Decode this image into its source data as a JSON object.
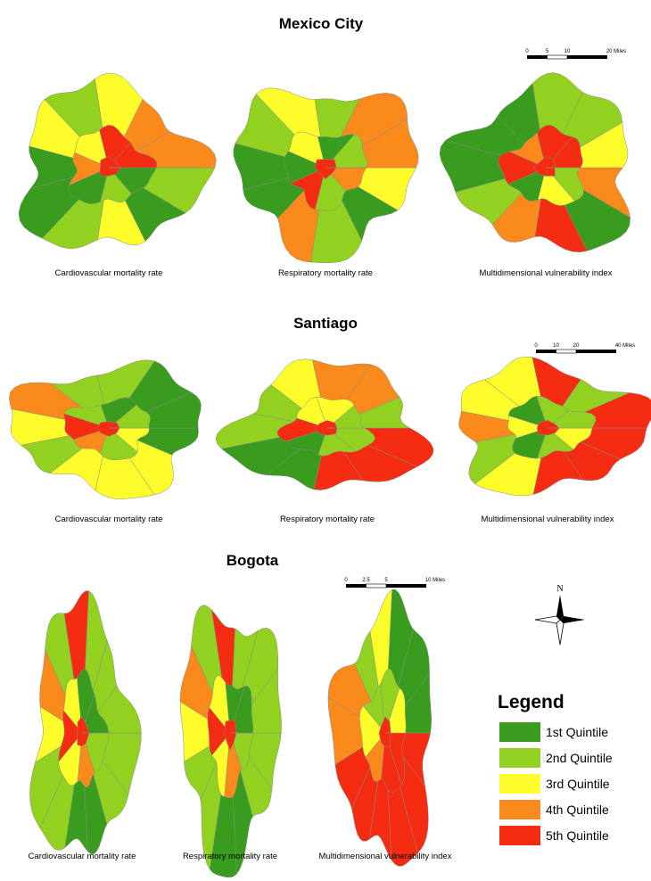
{
  "panels": [
    {
      "title": "Mexico City",
      "scale_bar": [
        "0",
        "5",
        "10",
        "20 Miles"
      ],
      "captions": [
        "Cardiovascular mortality rate",
        "Respiratory mortality rate",
        "Multidimensional vulnerability index"
      ]
    },
    {
      "title": "Santiago",
      "scale_bar": [
        "0",
        "10",
        "20",
        "40 Miles"
      ],
      "captions": [
        "Cardiovascular mortality rate",
        "Respiratory mortality rate",
        "Multidimensional vulnerability index"
      ]
    },
    {
      "title": "Bogota",
      "scale_bar": [
        "0",
        "2.5",
        "5",
        "10 Miles"
      ],
      "captions": [
        "Cardiovascular mortality rate",
        "Respiratory mortality rate",
        "Multidimensional vulnerability index"
      ]
    }
  ],
  "north_label": "N",
  "legend": {
    "title": "Legend",
    "items": [
      {
        "label": "1st Quintile",
        "color": "#3a9c1f"
      },
      {
        "label": "2nd Quintile",
        "color": "#92d11f"
      },
      {
        "label": "3rd Quintile",
        "color": "#fdfd2c"
      },
      {
        "label": "4th Quintile",
        "color": "#fa8a1c"
      },
      {
        "label": "5th Quintile",
        "color": "#f42d12"
      }
    ]
  }
}
